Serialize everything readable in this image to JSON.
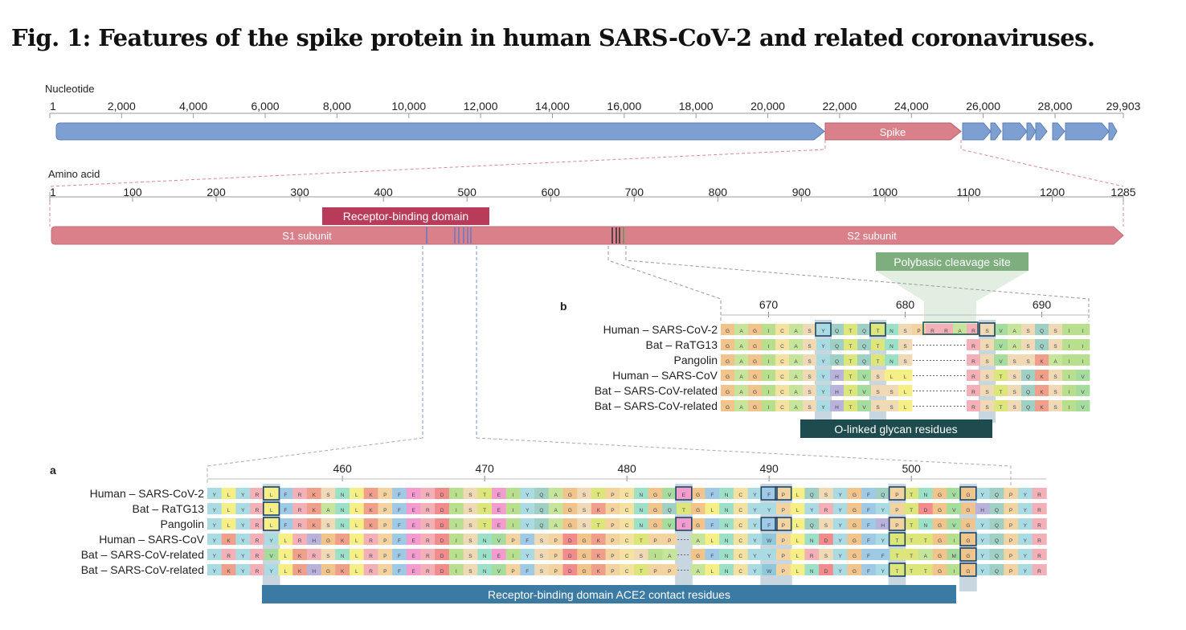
{
  "title": "Fig. 1: Features of the spike protein in human SARS-CoV-2 and related coronaviruses.",
  "nucleotide": {
    "label": "Nucleotide",
    "ticks": [
      "1",
      "2,000",
      "4,000",
      "6,000",
      "8,000",
      "10,000",
      "12,000",
      "14,000",
      "16,000",
      "18,000",
      "20,000",
      "22,000",
      "24,000",
      "26,000",
      "28,000",
      "29,903"
    ],
    "spike_label": "Spike"
  },
  "amino_acid": {
    "label": "Amino acid",
    "ticks": [
      "1",
      "100",
      "200",
      "300",
      "400",
      "500",
      "600",
      "700",
      "800",
      "900",
      "1000",
      "1100",
      "1200",
      "1285"
    ],
    "rbd_label": "Receptor-binding domain",
    "s1_label": "S1 subunit",
    "s2_label": "S2 subunit",
    "cleavage_label": "Polybasic cleavage site"
  },
  "panel_a": {
    "letter": "a",
    "ticks": [
      "460",
      "470",
      "480",
      "490",
      "500"
    ],
    "species": [
      "Human – SARS-CoV-2",
      "Bat – RaTG13",
      "Pangolin",
      "Human – SARS-CoV",
      "Bat – SARS-CoV-related",
      "Bat – SARS-CoV-related"
    ],
    "sequences": [
      "YLYRLFRKSNLKPFERDISTEIYQAGSTPCNGVEGFNCYFPLQSYGFQPTNGVGYQPYR",
      "YLYRLFRKANLKPFERDISTEIYQAGSKPCNGQTGLNCYYPLYRYGFYPTDGVGHQPYR",
      "YLYRLFRKSNLKPFERDISTEIYQAGSTPCNGVEGFNCYFPLQSYGFHPTNGVGYQPYR",
      "YKYRYLRHGKLRPFERDISNVPFSPDGKPCTPP-ALNCYWPLNDYGFYTTTGIGYQPYR",
      "YRYRVLKRSNLRPFERDISNEIYSPDGKPCSIA-GFNCYYPLRSYGFFTTAGMGYQPYR",
      "YKYRYLKHGKLRPFERDISNVPFSPDGKPCTPP-ALNCYWPLNDYGFYTTTGIGYQPYR"
    ],
    "contact_label": "Receptor-binding domain ACE2 contact residues"
  },
  "panel_b": {
    "letter": "b",
    "ticks": [
      "670",
      "680",
      "690"
    ],
    "species": [
      "Human – SARS-CoV-2",
      "Bat – RaTG13",
      "Pangolin",
      "Human – SARS-CoV",
      "Bat – SARS-CoV-related",
      "Bat – SARS-CoV-related"
    ],
    "sequences": [
      "GAGICASYQTQTNSPRRARSVASQSII",
      "GAGICASYQTQTNS----RSVASQSII",
      "GAGICASYQTQTNS----RSVSSKAII",
      "GAGICASYHTVSLL----RSTSQKSIV",
      "GAGICASYHTVSSL----RSTSQKSIV",
      "GAGICASYHTVSSL----RSTSQKSIV"
    ],
    "glycan_label": "O-linked glycan residues"
  },
  "colors": {
    "genome_blue": "#7e9fd2",
    "spike_pink": "#d9808a",
    "rbd_red": "#b83c5a",
    "cleavage_green": "#7eae7e",
    "contact_blue": "#3b7aa2",
    "glycan_teal": "#1e4b4d",
    "highlight_grey": "#c8d7df"
  }
}
